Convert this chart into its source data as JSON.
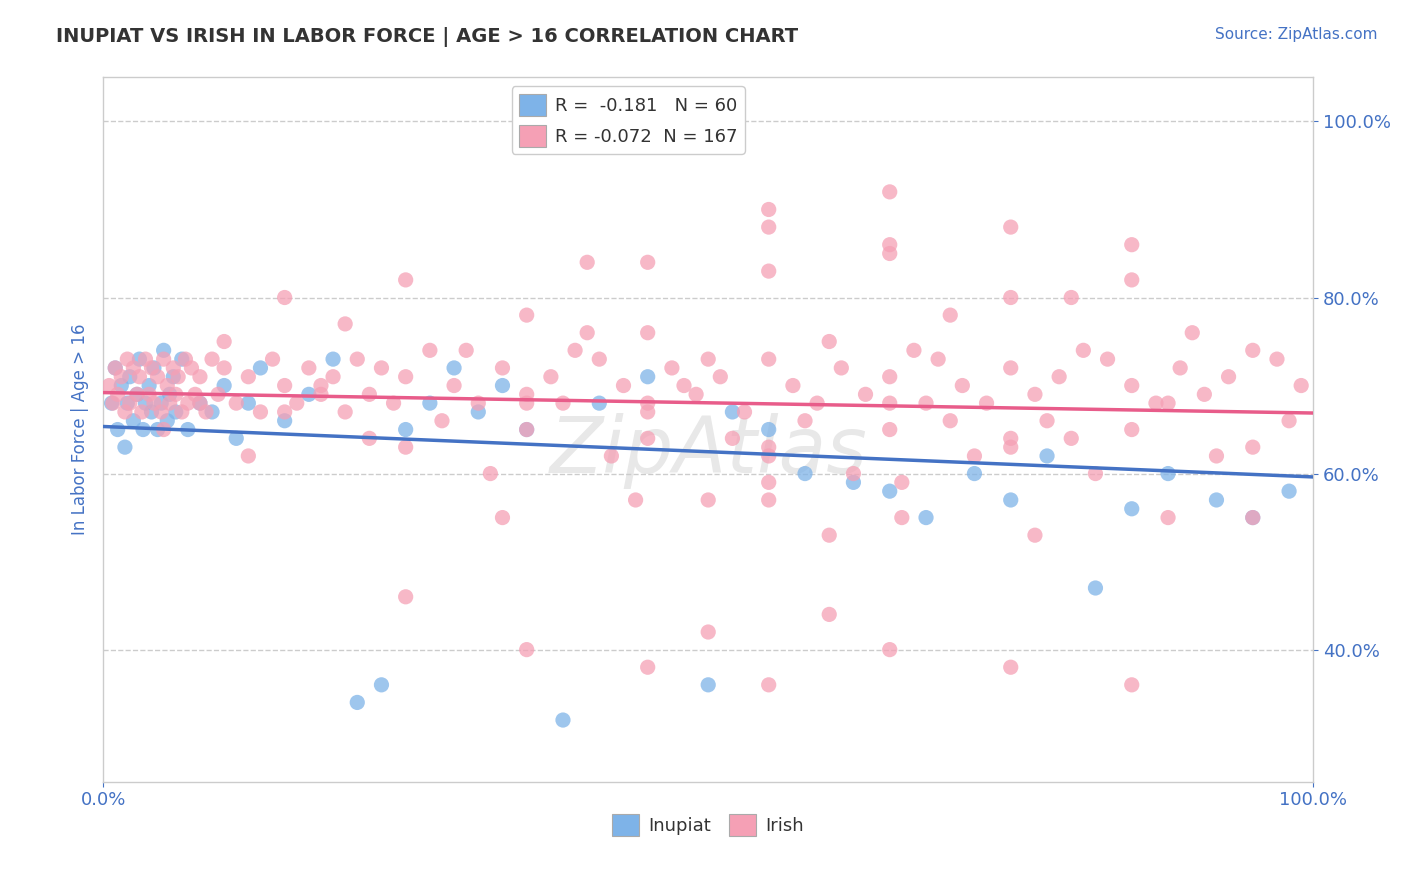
{
  "title": "INUPIAT VS IRISH IN LABOR FORCE | AGE > 16 CORRELATION CHART",
  "source_text": "Source: ZipAtlas.com",
  "ylabel": "In Labor Force | Age > 16",
  "xlim": [
    0.0,
    1.0
  ],
  "ylim": [
    0.25,
    1.05
  ],
  "y_ticks": [
    0.4,
    0.6,
    0.8,
    1.0
  ],
  "inupiat_R": -0.181,
  "inupiat_N": 60,
  "irish_R": -0.072,
  "irish_N": 167,
  "inupiat_color": "#7EB3E8",
  "irish_color": "#F5A0B5",
  "inupiat_line_color": "#4472C4",
  "irish_line_color": "#E85C8A",
  "background_color": "#FFFFFF",
  "grid_color": "#CCCCCC",
  "title_color": "#333333",
  "axis_label_color": "#4472C4",
  "tick_label_color": "#4472C4",
  "watermark": "ZipAtlas",
  "inupiat_x": [
    0.007,
    0.01,
    0.012,
    0.015,
    0.018,
    0.02,
    0.022,
    0.025,
    0.028,
    0.03,
    0.033,
    0.035,
    0.038,
    0.04,
    0.042,
    0.045,
    0.048,
    0.05,
    0.053,
    0.055,
    0.058,
    0.06,
    0.065,
    0.07,
    0.08,
    0.09,
    0.1,
    0.11,
    0.12,
    0.13,
    0.15,
    0.17,
    0.19,
    0.21,
    0.23,
    0.25,
    0.27,
    0.29,
    0.31,
    0.33,
    0.35,
    0.38,
    0.41,
    0.45,
    0.5,
    0.52,
    0.55,
    0.58,
    0.62,
    0.65,
    0.68,
    0.72,
    0.75,
    0.78,
    0.82,
    0.85,
    0.88,
    0.92,
    0.95,
    0.98
  ],
  "inupiat_y": [
    0.68,
    0.72,
    0.65,
    0.7,
    0.63,
    0.68,
    0.71,
    0.66,
    0.69,
    0.73,
    0.65,
    0.68,
    0.7,
    0.67,
    0.72,
    0.65,
    0.68,
    0.74,
    0.66,
    0.69,
    0.71,
    0.67,
    0.73,
    0.65,
    0.68,
    0.67,
    0.7,
    0.64,
    0.68,
    0.72,
    0.66,
    0.69,
    0.73,
    0.34,
    0.36,
    0.65,
    0.68,
    0.72,
    0.67,
    0.7,
    0.65,
    0.32,
    0.68,
    0.71,
    0.36,
    0.67,
    0.65,
    0.6,
    0.59,
    0.58,
    0.55,
    0.6,
    0.57,
    0.62,
    0.47,
    0.56,
    0.6,
    0.57,
    0.55,
    0.58
  ],
  "irish_x": [
    0.005,
    0.008,
    0.01,
    0.012,
    0.015,
    0.018,
    0.02,
    0.022,
    0.025,
    0.028,
    0.03,
    0.032,
    0.035,
    0.038,
    0.04,
    0.042,
    0.045,
    0.048,
    0.05,
    0.053,
    0.055,
    0.058,
    0.06,
    0.062,
    0.065,
    0.068,
    0.07,
    0.073,
    0.076,
    0.08,
    0.085,
    0.09,
    0.095,
    0.1,
    0.11,
    0.12,
    0.13,
    0.14,
    0.15,
    0.16,
    0.17,
    0.18,
    0.19,
    0.2,
    0.21,
    0.22,
    0.23,
    0.24,
    0.25,
    0.27,
    0.29,
    0.31,
    0.33,
    0.35,
    0.37,
    0.39,
    0.41,
    0.43,
    0.45,
    0.47,
    0.49,
    0.51,
    0.53,
    0.55,
    0.57,
    0.59,
    0.61,
    0.63,
    0.65,
    0.67,
    0.69,
    0.71,
    0.73,
    0.75,
    0.77,
    0.79,
    0.81,
    0.83,
    0.85,
    0.87,
    0.89,
    0.91,
    0.93,
    0.95,
    0.97,
    0.99,
    0.15,
    0.25,
    0.35,
    0.45,
    0.55,
    0.65,
    0.75,
    0.85,
    0.1,
    0.2,
    0.3,
    0.4,
    0.5,
    0.6,
    0.7,
    0.8,
    0.9,
    0.05,
    0.15,
    0.25,
    0.35,
    0.45,
    0.55,
    0.65,
    0.75,
    0.85,
    0.95,
    0.08,
    0.18,
    0.28,
    0.38,
    0.48,
    0.58,
    0.68,
    0.78,
    0.88,
    0.98,
    0.12,
    0.22,
    0.32,
    0.42,
    0.52,
    0.62,
    0.72,
    0.82,
    0.92,
    0.33,
    0.55,
    0.66,
    0.77,
    0.88,
    0.44,
    0.55,
    0.66,
    0.55,
    0.65,
    0.75,
    0.85,
    0.45,
    0.55,
    0.65,
    0.4,
    0.5,
    0.6,
    0.25,
    0.35,
    0.45,
    0.55,
    0.65,
    0.75,
    0.85,
    0.95,
    0.5,
    0.6,
    0.7,
    0.8,
    0.55,
    0.65,
    0.75,
    0.35,
    0.45
  ],
  "irish_y": [
    0.7,
    0.68,
    0.72,
    0.69,
    0.71,
    0.67,
    0.73,
    0.68,
    0.72,
    0.69,
    0.71,
    0.67,
    0.73,
    0.69,
    0.72,
    0.68,
    0.71,
    0.67,
    0.73,
    0.7,
    0.68,
    0.72,
    0.69,
    0.71,
    0.67,
    0.73,
    0.68,
    0.72,
    0.69,
    0.71,
    0.67,
    0.73,
    0.69,
    0.72,
    0.68,
    0.71,
    0.67,
    0.73,
    0.7,
    0.68,
    0.72,
    0.69,
    0.71,
    0.67,
    0.73,
    0.69,
    0.72,
    0.68,
    0.71,
    0.74,
    0.7,
    0.68,
    0.72,
    0.69,
    0.71,
    0.74,
    0.73,
    0.7,
    0.68,
    0.72,
    0.69,
    0.71,
    0.67,
    0.73,
    0.7,
    0.68,
    0.72,
    0.69,
    0.71,
    0.74,
    0.73,
    0.7,
    0.68,
    0.72,
    0.69,
    0.71,
    0.74,
    0.73,
    0.7,
    0.68,
    0.72,
    0.69,
    0.71,
    0.74,
    0.73,
    0.7,
    0.8,
    0.82,
    0.78,
    0.76,
    0.83,
    0.85,
    0.8,
    0.82,
    0.75,
    0.77,
    0.74,
    0.76,
    0.73,
    0.75,
    0.78,
    0.8,
    0.76,
    0.65,
    0.67,
    0.63,
    0.65,
    0.67,
    0.63,
    0.65,
    0.63,
    0.65,
    0.63,
    0.68,
    0.7,
    0.66,
    0.68,
    0.7,
    0.66,
    0.68,
    0.66,
    0.68,
    0.66,
    0.62,
    0.64,
    0.6,
    0.62,
    0.64,
    0.6,
    0.62,
    0.6,
    0.62,
    0.55,
    0.57,
    0.59,
    0.53,
    0.55,
    0.57,
    0.59,
    0.55,
    0.9,
    0.92,
    0.88,
    0.86,
    0.84,
    0.88,
    0.86,
    0.84,
    0.42,
    0.44,
    0.46,
    0.4,
    0.38,
    0.36,
    0.4,
    0.38,
    0.36,
    0.55,
    0.57,
    0.53,
    0.66,
    0.64,
    0.62,
    0.68,
    0.64,
    0.68,
    0.64
  ]
}
